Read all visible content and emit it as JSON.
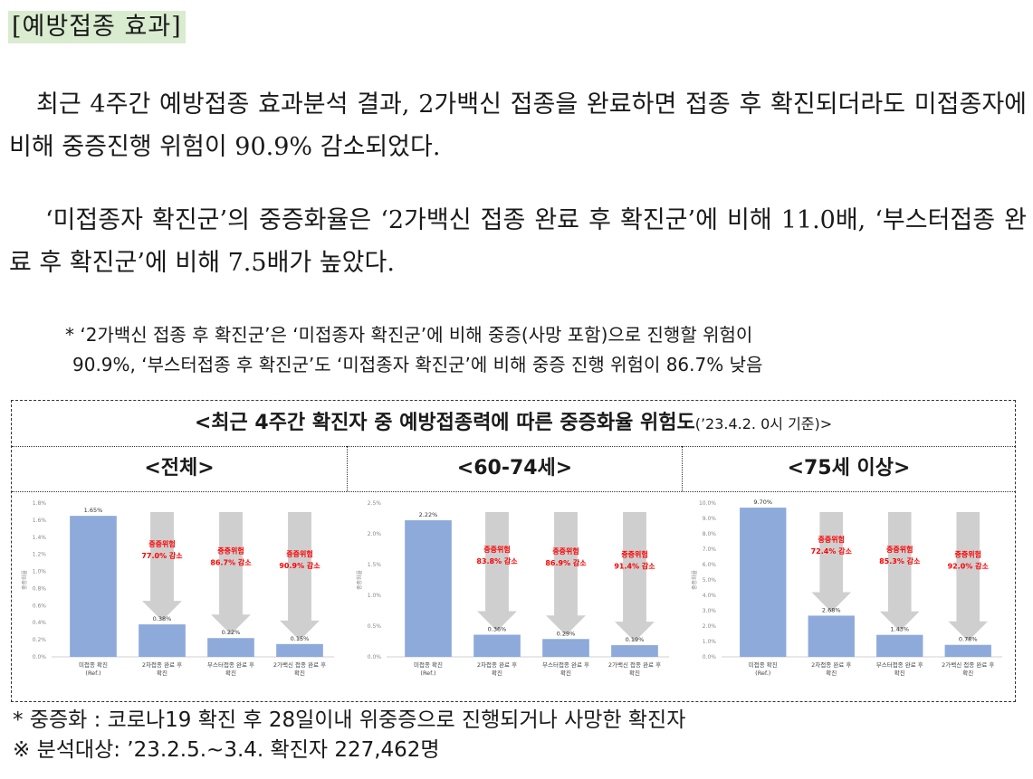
{
  "section_title": "[예방접종 효과]",
  "paragraph1": "최근 4주간 예방접종 효과분석 결과, 2가백신 접종을 완료하면 접종 후 확진되더라도 미접종자에 비해 중증진행 위험이 90.9% 감소되었다.",
  "paragraph2": "‘미접종자 확진군’의 중증화율은 ‘2가백신 접종 완료 후 확진군’에 비해 11.0배, ‘부스터접종 완료 후 확진군’에 비해 7.5배가 높았다.",
  "note": {
    "line1": "* ‘2가백신 접종 후 확진군’은 ‘미접종자 확진군’에 비해 중증(사망 포함)으로 진행할 위험이",
    "line2": "90.9%, ‘부스터접종 후 확진군’도 ‘미접종자 확진군’에 비해 중증 진행 위험이 86.7% 낮음"
  },
  "box": {
    "title": "<최근 4주간 확진자 중 예방접종력에 따른 중증화율 위험도",
    "title_suffix": "(’23.4.2. 0시 기준)>",
    "columns": [
      "<전체>",
      "<60-74세>",
      "<75세 이상>"
    ]
  },
  "colors": {
    "bar": "#8eaadb",
    "arrow": "#cfcfcf",
    "risk_text": "#ff0000",
    "title_highlight": "#d9ecd0"
  },
  "chart_data": [
    {
      "type": "bar",
      "title": "<전체>",
      "ylabel": "중증화율",
      "categories": [
        "미접종 확진\n(Ref.)",
        "2차접종 완료 후\n확진",
        "부스터접종 완료 후\n확진",
        "2가백신 접종 완료 후\n확진"
      ],
      "values": [
        1.65,
        0.38,
        0.22,
        0.15
      ],
      "value_labels": [
        "1.65%",
        "0.38%",
        "0.22%",
        "0.15%"
      ],
      "risk_labels": [
        "",
        "중증위험\n77.0% 감소",
        "중증위험\n86.7% 감소",
        "중증위험\n90.9% 감소"
      ],
      "yticks": [
        "0.0%",
        "0.2%",
        "0.4%",
        "0.6%",
        "0.8%",
        "1.0%",
        "1.2%",
        "1.4%",
        "1.6%",
        "1.8%"
      ],
      "ylim": [
        0,
        1.8
      ]
    },
    {
      "type": "bar",
      "title": "<60-74세>",
      "ylabel": "중증화율",
      "categories": [
        "미접종 확진\n(Ref.)",
        "2차접종 완료 후\n확진",
        "부스터접종 완료 후\n확진",
        "2가백신 접종 완료 후\n확진"
      ],
      "values": [
        2.22,
        0.36,
        0.29,
        0.19
      ],
      "value_labels": [
        "2.22%",
        "0.36%",
        "0.29%",
        "0.19%"
      ],
      "risk_labels": [
        "",
        "중증위험\n83.8% 감소",
        "중증위험\n86.9% 감소",
        "중증위험\n91.4% 감소"
      ],
      "yticks": [
        "0.0%",
        "0.5%",
        "1.0%",
        "1.5%",
        "2.0%",
        "2.5%"
      ],
      "ylim": [
        0,
        2.5
      ]
    },
    {
      "type": "bar",
      "title": "<75세 이상>",
      "ylabel": "중증화율",
      "categories": [
        "미접종 확진\n(Ref.)",
        "2차접종 완료 후\n확진",
        "부스터접종 완료 후\n확진",
        "2가백신 접종 완료 후\n확진"
      ],
      "values": [
        9.7,
        2.68,
        1.43,
        0.78
      ],
      "value_labels": [
        "9.70%",
        "2.68%",
        "1.43%",
        "0.78%"
      ],
      "risk_labels": [
        "",
        "중증위험\n72.4% 감소",
        "중증위험\n85.3% 감소",
        "중증위험\n92.0% 감소"
      ],
      "yticks": [
        "0.0%",
        "1.0%",
        "2.0%",
        "3.0%",
        "4.0%",
        "5.0%",
        "6.0%",
        "7.0%",
        "8.0%",
        "9.0%",
        "10.0%"
      ],
      "ylim": [
        0,
        10
      ]
    }
  ],
  "footer": {
    "line1": "* 중증화 : 코로나19 확진 후 28일이내 위중증으로 진행되거나 사망한 확진자",
    "line2": "※ 분석대상: ’23.2.5.~3.4. 확진자 227,462명"
  }
}
